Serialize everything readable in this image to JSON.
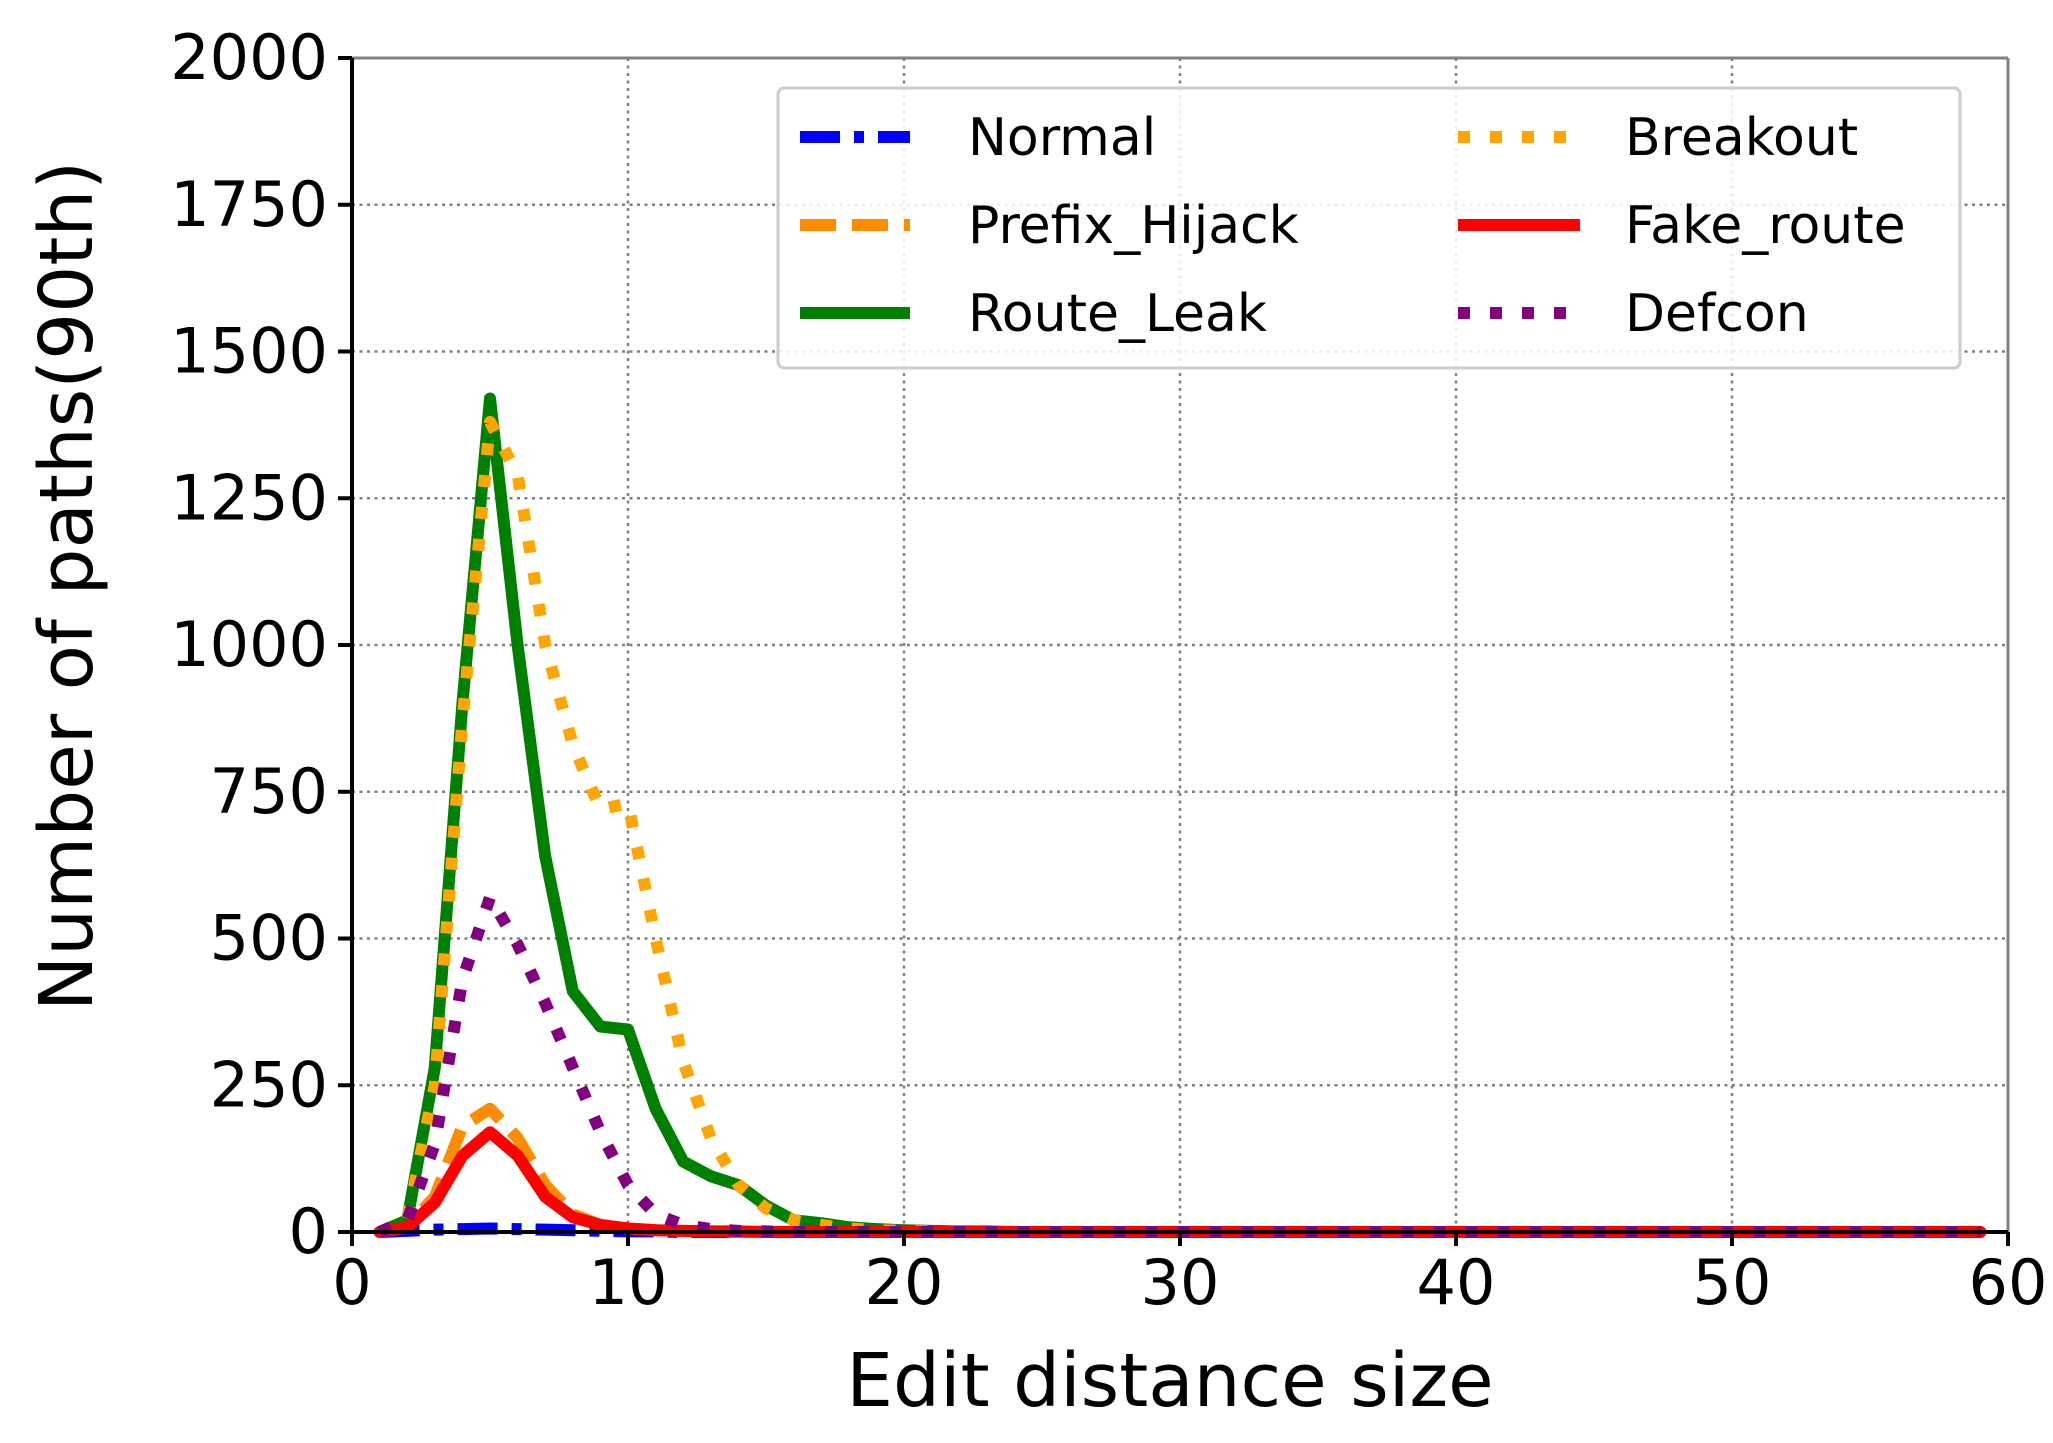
{
  "chart_data": {
    "type": "line",
    "title": "",
    "xlabel": "Edit distance size",
    "ylabel": "Number of paths(90th)",
    "xlim": [
      0,
      60
    ],
    "ylim": [
      0,
      2000
    ],
    "xticks": [
      0,
      10,
      20,
      30,
      40,
      50,
      60
    ],
    "yticks": [
      0,
      250,
      500,
      750,
      1000,
      1250,
      1500,
      1750,
      2000
    ],
    "grid": true,
    "legend_position": "top-right",
    "legend_columns": 2,
    "x": [
      1,
      2,
      3,
      4,
      5,
      6,
      7,
      8,
      9,
      10,
      11,
      12,
      13,
      14,
      15,
      16,
      17,
      18,
      19,
      20,
      21,
      22,
      23,
      24,
      25,
      26,
      27,
      28,
      29,
      30,
      31,
      32,
      33,
      34,
      35,
      36,
      37,
      38,
      39,
      40,
      41,
      42,
      43,
      44,
      45,
      46,
      47,
      48,
      49,
      50,
      51,
      52,
      53,
      54,
      55,
      56,
      57,
      58,
      59
    ],
    "series": [
      {
        "name": "Normal",
        "color": "#0000ff",
        "style": "dashdot",
        "values": [
          0,
          2,
          4,
          5,
          6,
          5,
          4,
          3,
          2,
          1,
          1,
          0,
          0,
          0,
          0,
          0,
          0,
          0,
          0,
          0,
          0,
          0,
          0,
          0,
          0,
          0,
          0,
          0,
          0,
          0,
          0,
          0,
          0,
          0,
          0,
          0,
          0,
          0,
          0,
          0,
          0,
          0,
          0,
          0,
          0,
          0,
          0,
          0,
          0,
          0,
          0,
          0,
          0,
          0,
          0,
          0,
          0,
          0,
          0
        ]
      },
      {
        "name": "Prefix_Hijack",
        "color": "#ff8c00",
        "style": "dashed",
        "values": [
          0,
          10,
          60,
          180,
          210,
          160,
          80,
          30,
          12,
          6,
          3,
          2,
          1,
          0,
          0,
          0,
          0,
          0,
          0,
          0,
          0,
          0,
          0,
          0,
          0,
          0,
          0,
          0,
          0,
          0,
          0,
          0,
          0,
          0,
          0,
          0,
          0,
          0,
          0,
          0,
          0,
          0,
          0,
          0,
          0,
          0,
          0,
          0,
          0,
          0,
          0,
          0,
          0,
          0,
          0,
          0,
          0,
          0,
          0
        ]
      },
      {
        "name": "Route_Leak",
        "color": "#008000",
        "style": "solid",
        "values": [
          0,
          20,
          280,
          900,
          1420,
          1000,
          640,
          410,
          350,
          345,
          210,
          120,
          95,
          80,
          45,
          20,
          15,
          8,
          5,
          3,
          2,
          1,
          1,
          0,
          0,
          0,
          0,
          0,
          0,
          0,
          0,
          0,
          0,
          0,
          0,
          0,
          0,
          0,
          0,
          0,
          0,
          0,
          0,
          0,
          0,
          0,
          0,
          0,
          0,
          0,
          0,
          0,
          0,
          0,
          0,
          0,
          0,
          0,
          0
        ]
      },
      {
        "name": "Breakout",
        "color": "#ffa500",
        "style": "dotted",
        "values": [
          0,
          20,
          250,
          870,
          1380,
          1290,
          1000,
          830,
          720,
          730,
          500,
          290,
          160,
          80,
          40,
          20,
          12,
          6,
          3,
          2,
          1,
          0,
          0,
          0,
          0,
          0,
          0,
          0,
          0,
          0,
          0,
          0,
          0,
          0,
          0,
          0,
          0,
          0,
          0,
          0,
          0,
          0,
          0,
          0,
          0,
          0,
          0,
          0,
          0,
          0,
          0,
          0,
          0,
          0,
          0,
          0,
          0,
          0,
          0
        ]
      },
      {
        "name": "Fake_route",
        "color": "#ff0000",
        "style": "solid",
        "values": [
          0,
          8,
          50,
          130,
          170,
          130,
          60,
          25,
          12,
          6,
          3,
          2,
          1,
          1,
          0,
          0,
          0,
          0,
          0,
          0,
          0,
          0,
          0,
          0,
          0,
          0,
          0,
          0,
          0,
          0,
          0,
          0,
          0,
          0,
          0,
          0,
          0,
          0,
          0,
          0,
          0,
          0,
          0,
          0,
          0,
          0,
          0,
          0,
          0,
          0,
          0,
          0,
          0,
          0,
          0,
          0,
          0,
          0,
          0
        ]
      },
      {
        "name": "Defcon",
        "color": "#800080",
        "style": "dotted",
        "values": [
          0,
          20,
          150,
          430,
          570,
          490,
          390,
          280,
          170,
          80,
          30,
          12,
          5,
          2,
          1,
          0,
          0,
          0,
          0,
          0,
          0,
          0,
          0,
          0,
          0,
          0,
          0,
          0,
          0,
          0,
          0,
          0,
          0,
          0,
          0,
          0,
          0,
          0,
          0,
          0,
          0,
          0,
          0,
          0,
          0,
          0,
          0,
          0,
          0,
          0,
          0,
          0,
          0,
          0,
          0,
          0,
          0,
          0,
          0
        ]
      }
    ],
    "legend_order": [
      "Normal",
      "Prefix_Hijack",
      "Route_Leak",
      "Breakout",
      "Fake_route",
      "Defcon"
    ]
  }
}
